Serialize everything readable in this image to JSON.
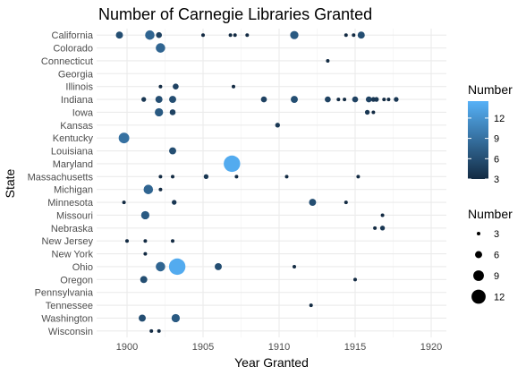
{
  "chart_data": {
    "type": "scatter",
    "title": "Number of Carnegie Libraries Granted",
    "xlabel": "Year Granted",
    "ylabel": "State",
    "xlim": [
      1898,
      1921
    ],
    "xticks": [
      1900,
      1905,
      1910,
      1915,
      1920
    ],
    "categories": [
      "California",
      "Colorado",
      "Connecticut",
      "Georgia",
      "Illinois",
      "Indiana",
      "Iowa",
      "Kansas",
      "Kentucky",
      "Louisiana",
      "Maryland",
      "Massachusetts",
      "Michigan",
      "Minnesota",
      "Missouri",
      "Nebraska",
      "New Jersey",
      "New York",
      "Ohio",
      "Oregon",
      "Pennsylvania",
      "Tennessee",
      "Washington",
      "Wisconsin"
    ],
    "grid": true,
    "background": "#ffffff",
    "gridline_color": "#ebebeb",
    "color_scale": {
      "low": "#132b43",
      "high": "#56b1f7",
      "min": 3,
      "max": 14.5
    },
    "legend_color": {
      "title": "Number",
      "ticks": [
        3,
        6,
        9,
        12
      ]
    },
    "legend_size": {
      "title": "Number",
      "values": [
        3,
        6,
        9,
        12
      ]
    },
    "points": [
      {
        "state": "California",
        "year": 1899.5,
        "number": 6
      },
      {
        "state": "California",
        "year": 1901.5,
        "number": 8
      },
      {
        "state": "California",
        "year": 1902.1,
        "number": 5
      },
      {
        "state": "California",
        "year": 1905.0,
        "number": 3
      },
      {
        "state": "California",
        "year": 1906.8,
        "number": 3
      },
      {
        "state": "California",
        "year": 1907.1,
        "number": 3
      },
      {
        "state": "California",
        "year": 1907.9,
        "number": 3
      },
      {
        "state": "California",
        "year": 1911.0,
        "number": 7
      },
      {
        "state": "California",
        "year": 1914.4,
        "number": 3
      },
      {
        "state": "California",
        "year": 1914.9,
        "number": 3
      },
      {
        "state": "California",
        "year": 1915.4,
        "number": 6
      },
      {
        "state": "Colorado",
        "year": 1902.2,
        "number": 8
      },
      {
        "state": "Connecticut",
        "year": 1913.2,
        "number": 3
      },
      {
        "state": "Illinois",
        "year": 1902.2,
        "number": 3
      },
      {
        "state": "Illinois",
        "year": 1903.2,
        "number": 5
      },
      {
        "state": "Illinois",
        "year": 1907.0,
        "number": 3
      },
      {
        "state": "Indiana",
        "year": 1901.1,
        "number": 4
      },
      {
        "state": "Indiana",
        "year": 1902.1,
        "number": 6
      },
      {
        "state": "Indiana",
        "year": 1903.0,
        "number": 6
      },
      {
        "state": "Indiana",
        "year": 1909.0,
        "number": 5
      },
      {
        "state": "Indiana",
        "year": 1911.0,
        "number": 6
      },
      {
        "state": "Indiana",
        "year": 1913.2,
        "number": 5
      },
      {
        "state": "Indiana",
        "year": 1913.9,
        "number": 3
      },
      {
        "state": "Indiana",
        "year": 1914.3,
        "number": 3
      },
      {
        "state": "Indiana",
        "year": 1915.0,
        "number": 5
      },
      {
        "state": "Indiana",
        "year": 1915.9,
        "number": 5
      },
      {
        "state": "Indiana",
        "year": 1916.2,
        "number": 4
      },
      {
        "state": "Indiana",
        "year": 1916.4,
        "number": 4
      },
      {
        "state": "Indiana",
        "year": 1916.9,
        "number": 3
      },
      {
        "state": "Indiana",
        "year": 1917.2,
        "number": 3
      },
      {
        "state": "Indiana",
        "year": 1917.7,
        "number": 4
      },
      {
        "state": "Iowa",
        "year": 1902.1,
        "number": 7
      },
      {
        "state": "Iowa",
        "year": 1903.0,
        "number": 5
      },
      {
        "state": "Iowa",
        "year": 1915.8,
        "number": 4
      },
      {
        "state": "Iowa",
        "year": 1916.2,
        "number": 3
      },
      {
        "state": "Kansas",
        "year": 1909.9,
        "number": 4
      },
      {
        "state": "Kentucky",
        "year": 1899.8,
        "number": 9
      },
      {
        "state": "Louisiana",
        "year": 1903.0,
        "number": 6
      },
      {
        "state": "Maryland",
        "year": 1906.9,
        "number": 14
      },
      {
        "state": "Massachusetts",
        "year": 1902.2,
        "number": 3
      },
      {
        "state": "Massachusetts",
        "year": 1903.0,
        "number": 3
      },
      {
        "state": "Massachusetts",
        "year": 1905.2,
        "number": 4
      },
      {
        "state": "Massachusetts",
        "year": 1907.2,
        "number": 3
      },
      {
        "state": "Massachusetts",
        "year": 1910.5,
        "number": 3
      },
      {
        "state": "Massachusetts",
        "year": 1915.2,
        "number": 3
      },
      {
        "state": "Michigan",
        "year": 1901.4,
        "number": 8
      },
      {
        "state": "Michigan",
        "year": 1902.2,
        "number": 3
      },
      {
        "state": "Minnesota",
        "year": 1899.8,
        "number": 3
      },
      {
        "state": "Minnesota",
        "year": 1903.1,
        "number": 4
      },
      {
        "state": "Minnesota",
        "year": 1912.2,
        "number": 6
      },
      {
        "state": "Minnesota",
        "year": 1914.4,
        "number": 3
      },
      {
        "state": "Missouri",
        "year": 1901.2,
        "number": 7
      },
      {
        "state": "Missouri",
        "year": 1916.8,
        "number": 3
      },
      {
        "state": "Nebraska",
        "year": 1916.3,
        "number": 3
      },
      {
        "state": "Nebraska",
        "year": 1916.8,
        "number": 4
      },
      {
        "state": "New Jersey",
        "year": 1900.0,
        "number": 3
      },
      {
        "state": "New Jersey",
        "year": 1901.2,
        "number": 3
      },
      {
        "state": "New Jersey",
        "year": 1903.0,
        "number": 3
      },
      {
        "state": "New York",
        "year": 1901.2,
        "number": 3
      },
      {
        "state": "Ohio",
        "year": 1902.2,
        "number": 8
      },
      {
        "state": "Ohio",
        "year": 1903.3,
        "number": 14
      },
      {
        "state": "Ohio",
        "year": 1906.0,
        "number": 6
      },
      {
        "state": "Ohio",
        "year": 1911.0,
        "number": 3
      },
      {
        "state": "Oregon",
        "year": 1901.1,
        "number": 6
      },
      {
        "state": "Oregon",
        "year": 1915.0,
        "number": 3
      },
      {
        "state": "Tennessee",
        "year": 1912.1,
        "number": 3
      },
      {
        "state": "Washington",
        "year": 1901.0,
        "number": 6
      },
      {
        "state": "Washington",
        "year": 1903.2,
        "number": 7
      },
      {
        "state": "Wisconsin",
        "year": 1901.6,
        "number": 3
      },
      {
        "state": "Wisconsin",
        "year": 1902.1,
        "number": 3
      }
    ]
  }
}
